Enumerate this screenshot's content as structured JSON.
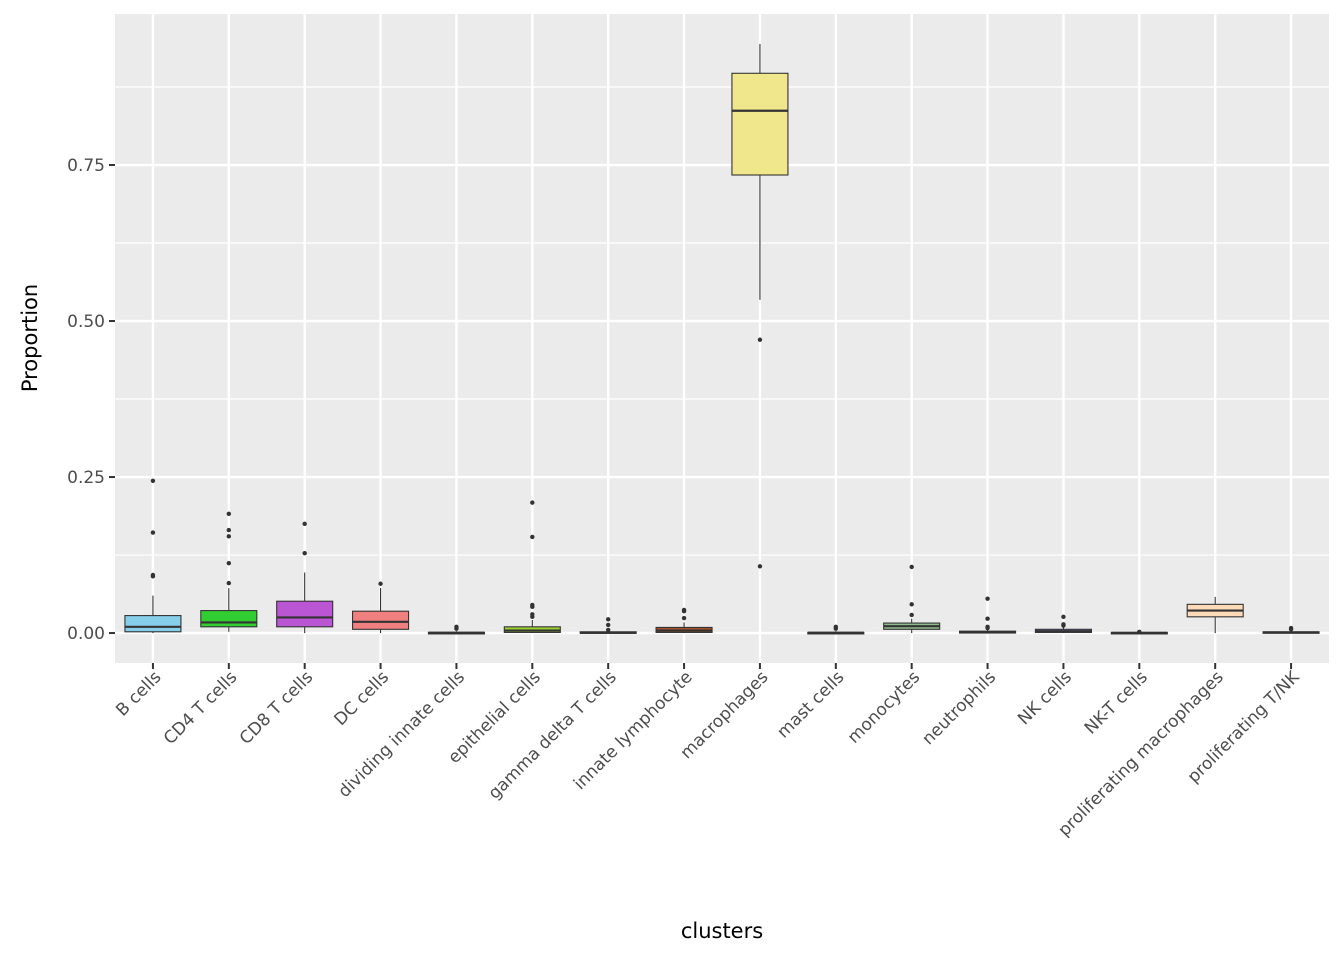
{
  "chart_data": {
    "type": "boxplot",
    "title": "",
    "xlabel": "clusters",
    "ylabel": "Proportion",
    "ylim": [
      -0.048,
      0.992
    ],
    "yticks": [
      0,
      0.25,
      0.5,
      0.75
    ],
    "ytick_labels": [
      "0.00",
      "0.25",
      "0.50",
      "0.75"
    ],
    "grid": true,
    "legend": "none",
    "categories": [
      "B cells",
      "CD4 T cells",
      "CD8 T cells",
      "DC cells",
      "dividing innate cells",
      "epithelial cells",
      "gamma delta T cells",
      "innate lymphocyte",
      "macrophages",
      "mast cells",
      "monocytes",
      "neutrophils",
      "NK cells",
      "NK-T cells",
      "proliferating macrophages",
      "proliferating T/NK"
    ],
    "boxes": [
      {
        "q1": 0.002,
        "median": 0.01,
        "q3": 0.028,
        "whisker_low": 0.0,
        "whisker_high": 0.06,
        "outliers": [
          0.244,
          0.161,
          0.093,
          0.091
        ],
        "fill": "#87CEEB"
      },
      {
        "q1": 0.01,
        "median": 0.017,
        "q3": 0.036,
        "whisker_low": 0.002,
        "whisker_high": 0.072,
        "outliers": [
          0.191,
          0.165,
          0.155,
          0.112,
          0.08
        ],
        "fill": "#32CD32"
      },
      {
        "q1": 0.01,
        "median": 0.025,
        "q3": 0.051,
        "whisker_low": 0.0,
        "whisker_high": 0.097,
        "outliers": [
          0.175,
          0.128
        ],
        "fill": "#BA55D3"
      },
      {
        "q1": 0.006,
        "median": 0.018,
        "q3": 0.035,
        "whisker_low": 0.0,
        "whisker_high": 0.072,
        "outliers": [
          0.079
        ],
        "fill": "#F08080"
      },
      {
        "q1": 0.0,
        "median": 0.0005,
        "q3": 0.001,
        "whisker_low": 0.0,
        "whisker_high": 0.003,
        "outliers": [
          0.01,
          0.007
        ],
        "fill": "#4682B4"
      },
      {
        "q1": 0.001,
        "median": 0.004,
        "q3": 0.01,
        "whisker_low": 0.0,
        "whisker_high": 0.021,
        "outliers": [
          0.209,
          0.154,
          0.045,
          0.042,
          0.03,
          0.026
        ],
        "fill": "#9ACD32"
      },
      {
        "q1": 0.0,
        "median": 0.0005,
        "q3": 0.002,
        "whisker_low": 0.0,
        "whisker_high": 0.003,
        "outliers": [
          0.022,
          0.013,
          0.005
        ],
        "fill": "#5F9EA0"
      },
      {
        "q1": 0.001,
        "median": 0.004,
        "q3": 0.009,
        "whisker_low": 0.0,
        "whisker_high": 0.017,
        "outliers": [
          0.037,
          0.035,
          0.024
        ],
        "fill": "#A0522D"
      },
      {
        "q1": 0.734,
        "median": 0.837,
        "q3": 0.897,
        "whisker_low": 0.534,
        "whisker_high": 0.944,
        "outliers": [
          0.47,
          0.107
        ],
        "fill": "#F0E68C"
      },
      {
        "q1": 0.0,
        "median": 0.0005,
        "q3": 0.001,
        "whisker_low": 0.0,
        "whisker_high": 0.003,
        "outliers": [
          0.01,
          0.007
        ],
        "fill": "#708090"
      },
      {
        "q1": 0.006,
        "median": 0.011,
        "q3": 0.016,
        "whisker_low": 0.0,
        "whisker_high": 0.023,
        "outliers": [
          0.106,
          0.046,
          0.029
        ],
        "fill": "#8FBC8F"
      },
      {
        "q1": 0.0,
        "median": 0.001,
        "q3": 0.003,
        "whisker_low": 0.0,
        "whisker_high": 0.006,
        "outliers": [
          0.055,
          0.023,
          0.01,
          0.008
        ],
        "fill": "#CD5C5C"
      },
      {
        "q1": 0.001,
        "median": 0.003,
        "q3": 0.006,
        "whisker_low": 0.0,
        "whisker_high": 0.01,
        "outliers": [
          0.026,
          0.014,
          0.012
        ],
        "fill": "#9370DB"
      },
      {
        "q1": 0.0,
        "median": 0.0003,
        "q3": 0.001,
        "whisker_low": 0.0,
        "whisker_high": 0.001,
        "outliers": [
          0.002
        ],
        "fill": "#778899"
      },
      {
        "q1": 0.026,
        "median": 0.036,
        "q3": 0.046,
        "whisker_low": 0.0,
        "whisker_high": 0.058,
        "outliers": [],
        "fill": "#FFDAB9"
      },
      {
        "q1": 0.0,
        "median": 0.001,
        "q3": 0.002,
        "whisker_low": 0.0,
        "whisker_high": 0.004,
        "outliers": [
          0.008,
          0.006
        ],
        "fill": "#6A5ACD"
      }
    ]
  }
}
